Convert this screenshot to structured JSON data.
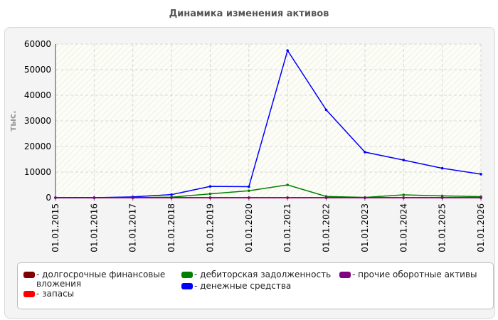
{
  "title": "Динамика изменения активов",
  "chart_data": {
    "type": "line",
    "title": "Динамика изменения активов",
    "xlabel": "",
    "ylabel": "тыс.",
    "ylim": [
      0,
      60000
    ],
    "yticks": [
      0,
      10000,
      20000,
      30000,
      40000,
      50000,
      60000
    ],
    "grid": true,
    "legend_position": "bottom",
    "categories": [
      "01.01.2015",
      "01.01.2016",
      "01.01.2017",
      "01.01.2018",
      "01.01.2019",
      "01.01.2020",
      "01.01.2021",
      "01.01.2022",
      "01.01.2023",
      "01.01.2024",
      "01.01.2025",
      "01.01.2026"
    ],
    "series": [
      {
        "name": "долгосрочные финансовые вложения",
        "color": "#800000",
        "values": [
          0,
          0,
          0,
          0,
          0,
          0,
          0,
          0,
          0,
          0,
          0,
          0
        ]
      },
      {
        "name": "запасы",
        "color": "#ff0000",
        "values": [
          0,
          0,
          0,
          0,
          0,
          0,
          0,
          0,
          0,
          0,
          0,
          0
        ]
      },
      {
        "name": "дебиторская задолженность",
        "color": "#008000",
        "values": [
          0,
          0,
          0,
          200,
          1500,
          2700,
          5000,
          500,
          100,
          1100,
          700,
          400
        ]
      },
      {
        "name": "денежные средства",
        "color": "#0000ff",
        "values": [
          0,
          0,
          300,
          1200,
          4400,
          4300,
          57500,
          34300,
          17800,
          14700,
          11500,
          9200
        ]
      },
      {
        "name": "прочие оборотные активы",
        "color": "#800080",
        "values": [
          0,
          0,
          0,
          0,
          0,
          0,
          0,
          0,
          0,
          0,
          0,
          0
        ]
      }
    ]
  },
  "legend": {
    "items": [
      {
        "label": "- долгосрочные финансовые вложения",
        "color": "#800000"
      },
      {
        "label": "- дебиторская задолженность",
        "color": "#008000"
      },
      {
        "label": "- прочие оборотные активы",
        "color": "#800080"
      },
      {
        "label": "- денежные средства",
        "color": "#0000ff"
      },
      {
        "label": "- запасы",
        "color": "#ff0000"
      }
    ]
  }
}
